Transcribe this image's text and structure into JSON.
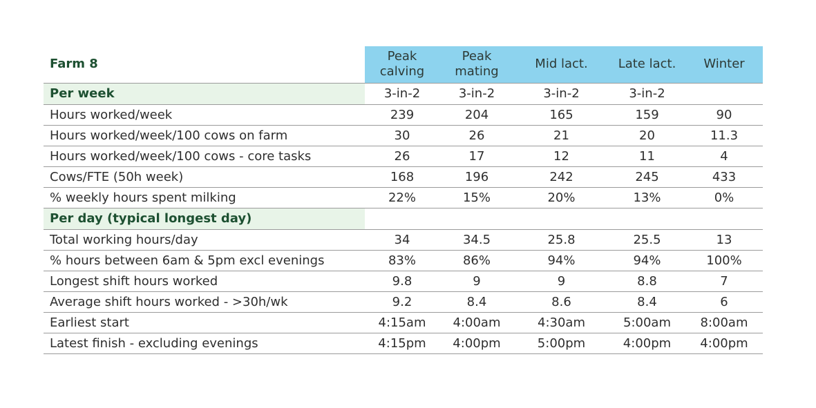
{
  "table": {
    "title": "Farm 8",
    "columns": [
      "Peak\ncalving",
      "Peak\nmating",
      "Mid lact.",
      "Late lact.",
      "Winter"
    ],
    "rows": [
      {
        "type": "section",
        "label": "Per week",
        "values": [
          "3-in-2",
          "3-in-2",
          "3-in-2",
          "3-in-2",
          ""
        ]
      },
      {
        "type": "data",
        "label": "Hours worked/week",
        "values": [
          "239",
          "204",
          "165",
          "159",
          "90"
        ]
      },
      {
        "type": "data",
        "label": "Hours worked/week/100  cows on farm",
        "values": [
          "30",
          "26",
          "21",
          "20",
          "11.3"
        ]
      },
      {
        "type": "data",
        "label": "Hours worked/week/100 cows - core tasks",
        "values": [
          "26",
          "17",
          "12",
          "11",
          "4"
        ]
      },
      {
        "type": "data",
        "label": "Cows/FTE (50h week)",
        "values": [
          "168",
          "196",
          "242",
          "245",
          "433"
        ]
      },
      {
        "type": "data",
        "label": "% weekly hours spent milking",
        "values": [
          "22%",
          "15%",
          "20%",
          "13%",
          "0%"
        ]
      },
      {
        "type": "section",
        "label": "Per day (typical longest day)",
        "values": [
          "",
          "",
          "",
          "",
          ""
        ]
      },
      {
        "type": "data",
        "label": "Total working hours/day",
        "values": [
          "34",
          "34.5",
          "25.8",
          "25.5",
          "13"
        ]
      },
      {
        "type": "data",
        "label": "% hours between 6am & 5pm excl evenings",
        "values": [
          "83%",
          "86%",
          "94%",
          "94%",
          "100%"
        ]
      },
      {
        "type": "data",
        "label": "Longest shift hours worked",
        "values": [
          "9.8",
          "9",
          "9",
          "8.8",
          "7"
        ]
      },
      {
        "type": "data",
        "label": "Average shift hours worked - >30h/wk",
        "values": [
          "9.2",
          "8.4",
          "8.6",
          "8.4",
          "6"
        ]
      },
      {
        "type": "data",
        "label": "Earliest start",
        "values": [
          "4:15am",
          "4:00am",
          "4:30am",
          "5:00am",
          "8:00am"
        ]
      },
      {
        "type": "data",
        "label": "Latest finish - excluding evenings",
        "values": [
          "4:15pm",
          "4:00pm",
          "5:00pm",
          "4:00pm",
          "4:00pm"
        ]
      }
    ]
  },
  "colors": {
    "header_bg": "#8dd3ee",
    "section_bg": "#e8f4e8",
    "title_text": "#1d5031",
    "rule": "#9a9a9a"
  }
}
